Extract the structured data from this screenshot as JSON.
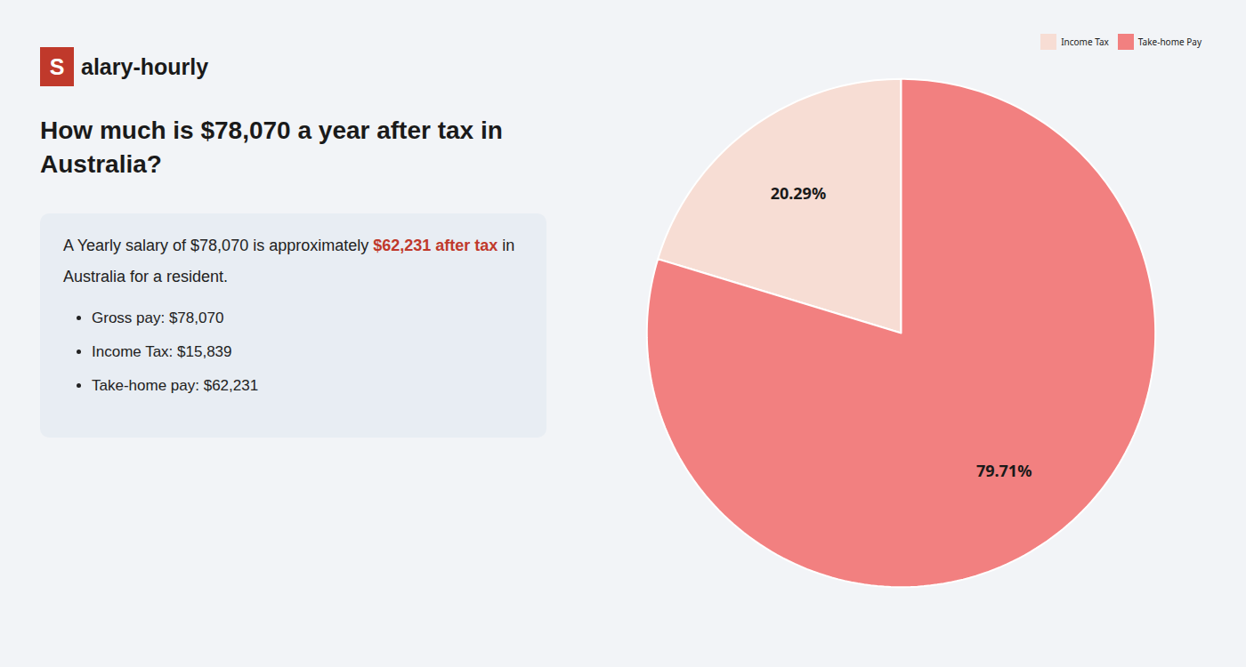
{
  "chart_data": {
    "type": "pie",
    "title": "How much is $78,070 a year after tax in\nAustralia?",
    "categories": [
      "Income Tax",
      "Take-home Pay"
    ],
    "values": [
      20.29,
      79.71
    ],
    "value_labels": [
      "20.29%",
      "79.71%"
    ],
    "colors": [
      "#f7ddd4",
      "#f28080"
    ],
    "legend": "upper right",
    "data_labels": true,
    "annotations": [
      [
        {
          "text": "S",
          "color": "#c0392b"
        },
        {
          "text": "alary-hourly"
        }
      ],
      [
        {
          "text": "A Yearly salary of $78,070 is approximately "
        },
        {
          "text": "$62,231 after tax",
          "color": "#c0392b"
        },
        {
          "text": " in"
        }
      ],
      [
        {
          "text": "Australia for a resident."
        }
      ],
      [
        {
          "text": "Gross pay: $78,070"
        }
      ],
      [
        {
          "text": "Income Tax: $15,839"
        }
      ],
      [
        {
          "text": "Take-home pay: $62,231"
        }
      ]
    ]
  }
}
